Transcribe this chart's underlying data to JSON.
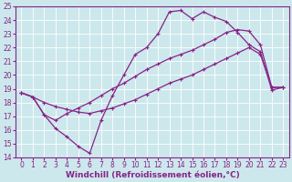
{
  "xlabel": "Windchill (Refroidissement éolien,°C)",
  "bg_color": "#cce8ec",
  "grid_color": "#ffffff",
  "line_color": "#882288",
  "xlim": [
    -0.5,
    23.5
  ],
  "ylim": [
    14,
    25
  ],
  "xticks": [
    0,
    1,
    2,
    3,
    4,
    5,
    6,
    7,
    8,
    9,
    10,
    11,
    12,
    13,
    14,
    15,
    16,
    17,
    18,
    19,
    20,
    21,
    22,
    23
  ],
  "yticks": [
    14,
    15,
    16,
    17,
    18,
    19,
    20,
    21,
    22,
    23,
    24,
    25
  ],
  "line1_x": [
    0,
    1,
    2,
    3,
    4,
    5,
    6,
    7,
    8,
    9,
    10,
    11,
    12,
    13,
    14,
    15,
    16,
    17,
    18,
    19,
    20,
    21,
    22,
    23
  ],
  "line1_y": [
    18.7,
    18.4,
    17.1,
    16.1,
    15.5,
    14.8,
    14.3,
    16.7,
    18.5,
    20.0,
    21.5,
    22.0,
    23.0,
    24.6,
    24.7,
    24.1,
    24.6,
    24.2,
    23.9,
    23.1,
    22.2,
    21.7,
    18.9,
    19.1
  ],
  "line2_x": [
    0,
    1,
    2,
    3,
    4,
    5,
    6,
    7,
    8,
    9,
    10,
    11,
    12,
    13,
    14,
    15,
    16,
    17,
    18,
    19,
    20,
    21,
    22,
    23
  ],
  "line2_y": [
    18.7,
    18.4,
    18.0,
    17.7,
    17.5,
    17.3,
    17.2,
    17.4,
    17.6,
    17.9,
    18.2,
    18.6,
    19.0,
    19.4,
    19.7,
    20.0,
    20.4,
    20.8,
    21.2,
    21.6,
    22.0,
    21.5,
    19.1,
    19.1
  ],
  "line3_x": [
    0,
    1,
    2,
    3,
    4,
    5,
    6,
    7,
    8,
    9,
    10,
    11,
    12,
    13,
    14,
    15,
    16,
    17,
    18,
    19,
    20,
    21,
    22,
    23
  ],
  "line3_y": [
    18.7,
    18.4,
    17.1,
    16.7,
    17.2,
    17.6,
    18.0,
    18.5,
    19.0,
    19.4,
    19.9,
    20.4,
    20.8,
    21.2,
    21.5,
    21.8,
    22.2,
    22.6,
    23.1,
    23.3,
    23.2,
    22.2,
    19.1,
    19.1
  ],
  "marker_size": 2.5,
  "line_width": 0.9,
  "tick_fontsize": 5.5,
  "xlabel_fontsize": 6.5
}
